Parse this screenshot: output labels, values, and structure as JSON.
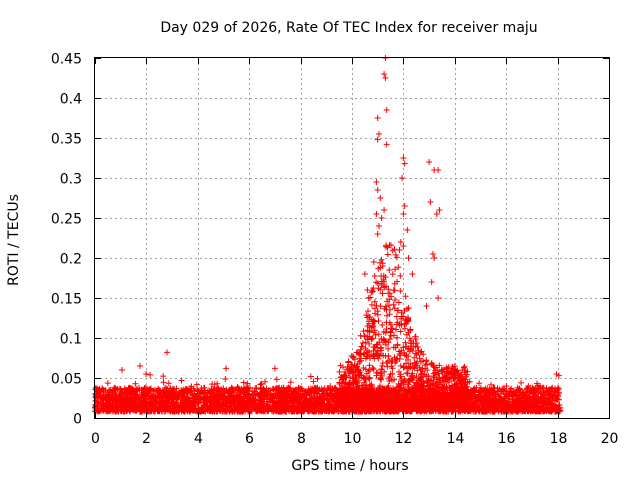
{
  "chart_data": {
    "type": "scatter",
    "title": "Day 029 of 2026, Rate Of TEC Index for receiver maju",
    "xlabel": "GPS time / hours",
    "ylabel": "ROTI / TECUs",
    "xlim": [
      0,
      20
    ],
    "ylim": [
      0,
      0.45
    ],
    "xticks": [
      0,
      2,
      4,
      6,
      8,
      10,
      12,
      14,
      16,
      18,
      20
    ],
    "yticks": [
      0,
      0.05,
      0.1,
      0.15,
      0.2,
      0.25,
      0.3,
      0.35,
      0.4,
      0.45
    ],
    "xtick_labels": [
      "0",
      "2",
      "4",
      "6",
      "8",
      "10",
      "12",
      "14",
      "16",
      "18",
      "20"
    ],
    "ytick_labels": [
      "0",
      "0.05",
      "0.1",
      "0.15",
      "0.2",
      "0.25",
      "0.3",
      "0.35",
      "0.4",
      "0.45"
    ],
    "grid": true,
    "marker": "+",
    "color": "#ff0000",
    "series": [
      {
        "name": "ROTI",
        "description": "Dense baseline 0.01-0.04 TECU from 0 to 18.1 h with an enhancement between 10 and 14 h peaking near 0.45 TECU around 11.3 h",
        "highlights": [
          {
            "x": 11.3,
            "y": 0.45
          },
          {
            "x": 11.25,
            "y": 0.43
          },
          {
            "x": 11.3,
            "y": 0.425
          },
          {
            "x": 11.35,
            "y": 0.385
          },
          {
            "x": 11.0,
            "y": 0.375
          },
          {
            "x": 11.05,
            "y": 0.355
          },
          {
            "x": 11.0,
            "y": 0.348
          },
          {
            "x": 11.35,
            "y": 0.342
          },
          {
            "x": 12.0,
            "y": 0.325
          },
          {
            "x": 12.05,
            "y": 0.318
          },
          {
            "x": 13.0,
            "y": 0.32
          },
          {
            "x": 13.2,
            "y": 0.31
          },
          {
            "x": 13.35,
            "y": 0.31
          },
          {
            "x": 11.95,
            "y": 0.3
          },
          {
            "x": 10.95,
            "y": 0.295
          },
          {
            "x": 11.0,
            "y": 0.285
          },
          {
            "x": 11.1,
            "y": 0.275
          },
          {
            "x": 13.05,
            "y": 0.27
          },
          {
            "x": 13.4,
            "y": 0.26
          },
          {
            "x": 12.05,
            "y": 0.265
          },
          {
            "x": 11.25,
            "y": 0.26
          },
          {
            "x": 10.95,
            "y": 0.255
          },
          {
            "x": 11.15,
            "y": 0.25
          },
          {
            "x": 12.0,
            "y": 0.255
          },
          {
            "x": 13.3,
            "y": 0.255
          },
          {
            "x": 11.05,
            "y": 0.24
          },
          {
            "x": 11.0,
            "y": 0.23
          },
          {
            "x": 12.15,
            "y": 0.235
          },
          {
            "x": 11.9,
            "y": 0.22
          },
          {
            "x": 12.0,
            "y": 0.215
          },
          {
            "x": 11.85,
            "y": 0.21
          },
          {
            "x": 13.15,
            "y": 0.205
          },
          {
            "x": 13.2,
            "y": 0.2
          },
          {
            "x": 12.2,
            "y": 0.2
          },
          {
            "x": 10.85,
            "y": 0.195
          },
          {
            "x": 11.2,
            "y": 0.19
          },
          {
            "x": 11.45,
            "y": 0.185
          },
          {
            "x": 12.35,
            "y": 0.18
          },
          {
            "x": 10.5,
            "y": 0.18
          },
          {
            "x": 10.6,
            "y": 0.16
          },
          {
            "x": 13.1,
            "y": 0.17
          },
          {
            "x": 10.65,
            "y": 0.15
          },
          {
            "x": 13.35,
            "y": 0.15
          },
          {
            "x": 12.9,
            "y": 0.14
          },
          {
            "x": 2.8,
            "y": 0.082
          },
          {
            "x": 1.75,
            "y": 0.065
          },
          {
            "x": 1.05,
            "y": 0.06
          },
          {
            "x": 5.1,
            "y": 0.062
          },
          {
            "x": 7.0,
            "y": 0.062
          },
          {
            "x": 18.05,
            "y": 0.053
          }
        ]
      }
    ]
  }
}
